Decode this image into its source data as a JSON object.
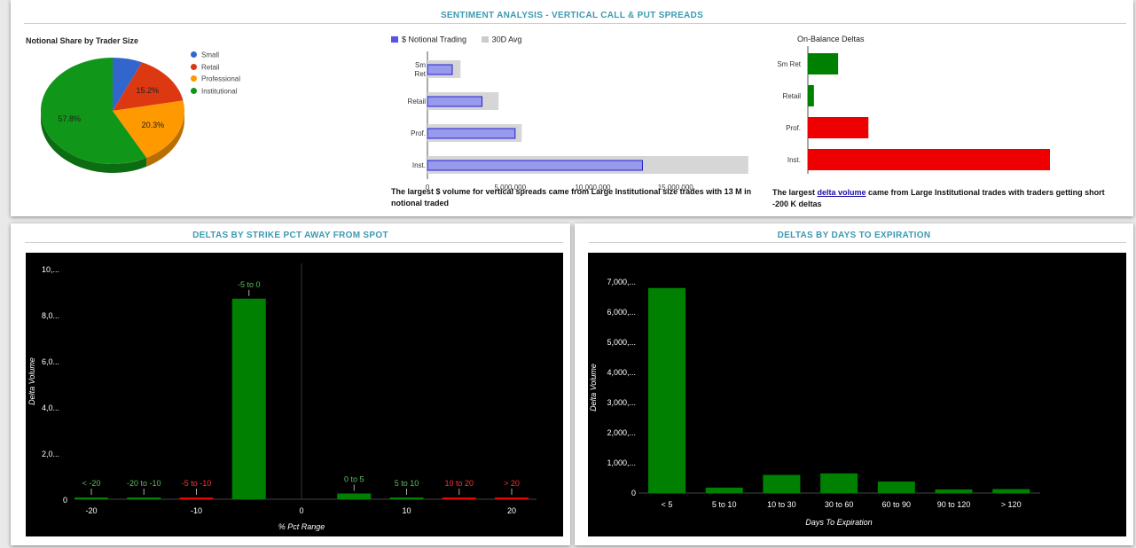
{
  "top_panel": {
    "title": "SENTIMENT ANALYSIS - VERTICAL CALL & PUT SPREADS",
    "notional_caption": "The largest $ volume for vertical spreads came from Large Institutional size trades with 13 M in notional traded",
    "delta_caption_pre": "The largest ",
    "delta_caption_link": "delta volume",
    "delta_caption_post": " came from Large Institutional trades with traders getting short -200 K deltas"
  },
  "bottom_left": {
    "title": "DELTAS BY STRIKE PCT AWAY FROM SPOT"
  },
  "bottom_right": {
    "title": "DELTAS BY DAYS TO EXPIRATION"
  },
  "colors": {
    "title": "#3b9ab2",
    "small": "#3366cc",
    "retail": "#dc3912",
    "professional": "#ff9900",
    "institutional": "#109618",
    "notional_bar": "#9999ee",
    "avg_bar": "#d6d6d6",
    "positive": "#008000",
    "negative": "#ee0000",
    "label_positive": "#5cbf5c",
    "label_negative": "#ff3333"
  },
  "chart_data": [
    {
      "type": "pie",
      "title": "Notional Share by Trader Size",
      "legend_position": "right",
      "slices": [
        {
          "name": "Small",
          "value": 6.7,
          "label": ""
        },
        {
          "name": "Retail",
          "value": 15.2,
          "label": "15.2%"
        },
        {
          "name": "Professional",
          "value": 20.3,
          "label": "20.3%"
        },
        {
          "name": "Institutional",
          "value": 57.8,
          "label": "57.8%"
        }
      ]
    },
    {
      "type": "bar",
      "orientation": "horizontal",
      "title": "",
      "legend_position": "top",
      "categories": [
        "Sm Ret",
        "Retail",
        "Prof.",
        "Inst."
      ],
      "series": [
        {
          "name": "$ Notional Trading",
          "values": [
            1500000,
            3300000,
            5300000,
            13000000
          ]
        },
        {
          "name": "30D Avg",
          "values": [
            2000000,
            4300000,
            5700000,
            19400000
          ]
        }
      ],
      "xticks": [
        "0",
        "5,000,000",
        "10,000,000",
        "15,000,000"
      ],
      "xlim": [
        0,
        20000000
      ]
    },
    {
      "type": "bar",
      "orientation": "horizontal",
      "title": "On-Balance Deltas",
      "categories": [
        "Sm Ret",
        "Retail",
        "Prof.",
        "Inst."
      ],
      "values": [
        25000,
        5000,
        -50000,
        -200000
      ],
      "bar_signs": [
        "positive",
        "positive",
        "negative",
        "negative"
      ]
    },
    {
      "type": "bar",
      "title": "",
      "xlabel": "% Pct Range",
      "ylabel": "Delta Volume",
      "xlim": [
        -25,
        25
      ],
      "ylim": [
        0,
        10000
      ],
      "yticks": [
        "10,...",
        "8,0...",
        "6,0...",
        "4,0...",
        "2,0...",
        "0"
      ],
      "xticks": [
        "-20",
        "-10",
        "0",
        "10",
        "20"
      ],
      "grid": false,
      "bars": [
        {
          "label": "< -20",
          "x": -20,
          "value": 15,
          "sign": "positive"
        },
        {
          "label": "-20 to -10",
          "x": -15,
          "value": 20,
          "sign": "positive"
        },
        {
          "label": "-5 to -10",
          "x": -10,
          "value": 10,
          "sign": "negative"
        },
        {
          "label": "-5 to 0",
          "x": -5,
          "value": 8700,
          "sign": "positive"
        },
        {
          "label": "0 to 5",
          "x": 5,
          "value": 250,
          "sign": "positive"
        },
        {
          "label": "5 to 10",
          "x": 10,
          "value": 20,
          "sign": "positive"
        },
        {
          "label": "10 to 20",
          "x": 15,
          "value": 15,
          "sign": "negative"
        },
        {
          "label": "> 20",
          "x": 20,
          "value": 10,
          "sign": "negative"
        }
      ]
    },
    {
      "type": "bar",
      "title": "",
      "xlabel": "Days To Expiration",
      "ylabel": "Delta Volume",
      "ylim": [
        0,
        7000
      ],
      "yticks": [
        "7,000,...",
        "6,000,...",
        "5,000,...",
        "4,000,...",
        "3,000,...",
        "2,000,...",
        "1,000,...",
        "0"
      ],
      "grid": false,
      "categories": [
        "< 5",
        "5 to 10",
        "10 to 30",
        "30 to 60",
        "60 to 90",
        "90 to 120",
        "> 120"
      ],
      "values": [
        6800,
        180,
        600,
        650,
        380,
        120,
        130
      ]
    }
  ]
}
